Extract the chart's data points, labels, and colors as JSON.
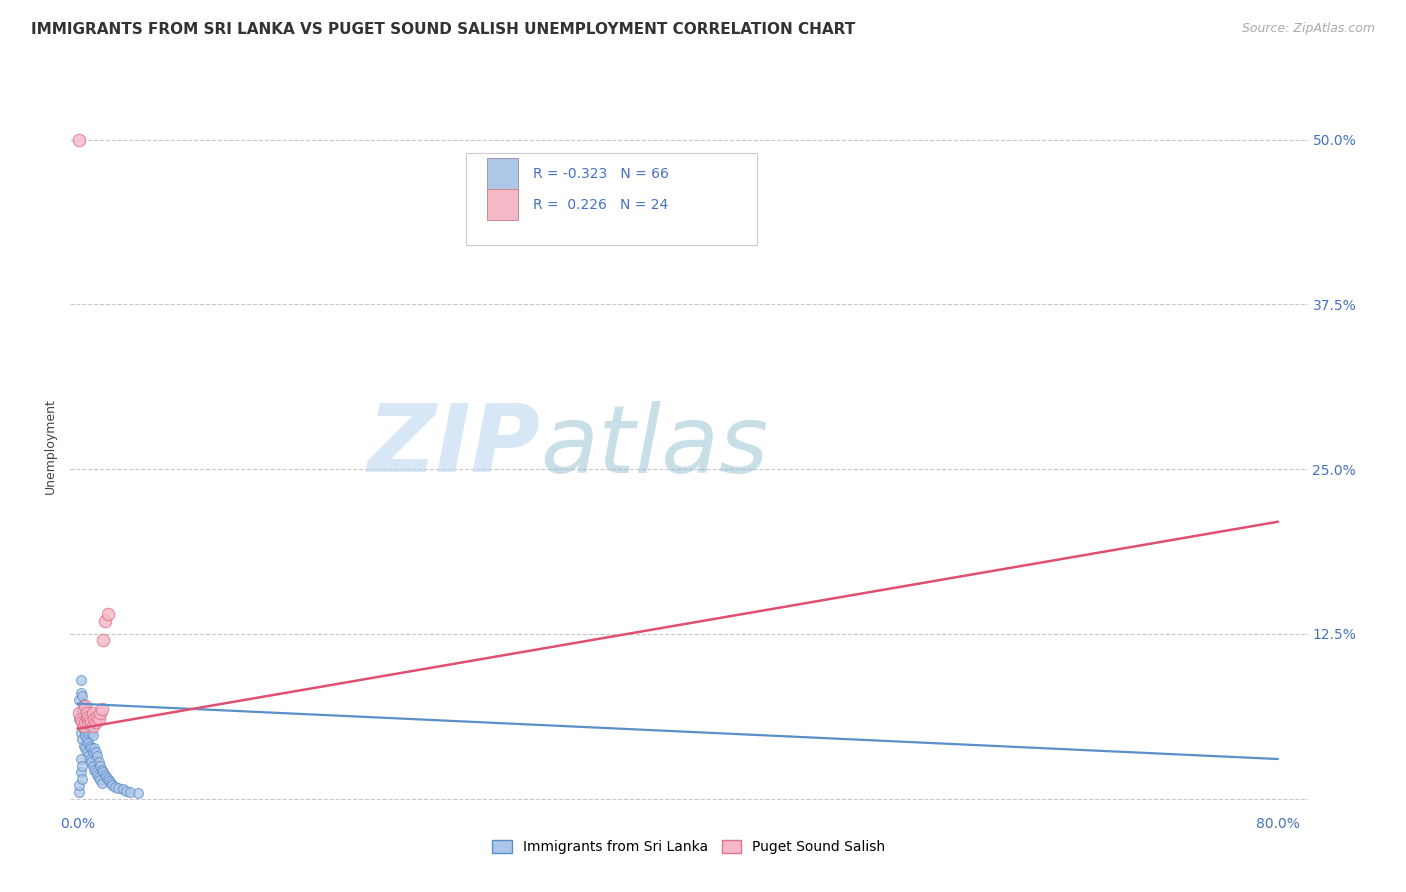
{
  "title": "IMMIGRANTS FROM SRI LANKA VS PUGET SOUND SALISH UNEMPLOYMENT CORRELATION CHART",
  "source": "Source: ZipAtlas.com",
  "ylabel": "Unemployment",
  "xlim": [
    -0.005,
    0.82
  ],
  "ylim": [
    -0.01,
    0.545
  ],
  "xtick_positions": [
    0.0,
    0.8
  ],
  "xticklabels": [
    "0.0%",
    "80.0%"
  ],
  "ytick_positions": [
    0.0,
    0.125,
    0.25,
    0.375,
    0.5
  ],
  "yticklabels_right": [
    "",
    "12.5%",
    "25.0%",
    "37.5%",
    "50.0%"
  ],
  "legend_R1": "-0.323",
  "legend_N1": "66",
  "legend_R2": "0.226",
  "legend_N2": "24",
  "color_blue_fill": "#aec6e8",
  "color_blue_edge": "#5b8fc9",
  "color_pink_fill": "#f5b8c8",
  "color_pink_edge": "#e0748a",
  "color_blue_line": "#5b8fc9",
  "color_pink_line": "#e05070",
  "color_text_blue": "#4472c4",
  "color_grid": "#c8c8c8",
  "watermark_zip": "ZIP",
  "watermark_atlas": "atlas",
  "background_color": "#ffffff",
  "blue_scatter_x": [
    0.001,
    0.001,
    0.002,
    0.002,
    0.002,
    0.002,
    0.003,
    0.003,
    0.003,
    0.003,
    0.004,
    0.004,
    0.004,
    0.004,
    0.005,
    0.005,
    0.005,
    0.005,
    0.006,
    0.006,
    0.006,
    0.006,
    0.007,
    0.007,
    0.007,
    0.007,
    0.008,
    0.008,
    0.008,
    0.009,
    0.009,
    0.009,
    0.01,
    0.01,
    0.01,
    0.011,
    0.011,
    0.012,
    0.012,
    0.013,
    0.013,
    0.014,
    0.014,
    0.015,
    0.015,
    0.016,
    0.016,
    0.017,
    0.018,
    0.019,
    0.02,
    0.021,
    0.022,
    0.023,
    0.025,
    0.027,
    0.03,
    0.032,
    0.035,
    0.04,
    0.001,
    0.001,
    0.002,
    0.002,
    0.003,
    0.003
  ],
  "blue_scatter_y": [
    0.06,
    0.075,
    0.05,
    0.065,
    0.08,
    0.09,
    0.045,
    0.055,
    0.068,
    0.078,
    0.04,
    0.052,
    0.063,
    0.072,
    0.038,
    0.048,
    0.058,
    0.07,
    0.035,
    0.045,
    0.055,
    0.065,
    0.032,
    0.042,
    0.05,
    0.062,
    0.03,
    0.04,
    0.055,
    0.028,
    0.038,
    0.05,
    0.025,
    0.035,
    0.048,
    0.022,
    0.038,
    0.02,
    0.035,
    0.018,
    0.032,
    0.016,
    0.028,
    0.014,
    0.025,
    0.012,
    0.022,
    0.02,
    0.018,
    0.016,
    0.015,
    0.013,
    0.012,
    0.01,
    0.009,
    0.008,
    0.007,
    0.006,
    0.005,
    0.004,
    0.005,
    0.01,
    0.02,
    0.03,
    0.015,
    0.025
  ],
  "pink_scatter_x": [
    0.001,
    0.002,
    0.003,
    0.004,
    0.005,
    0.005,
    0.006,
    0.006,
    0.007,
    0.007,
    0.008,
    0.009,
    0.01,
    0.01,
    0.011,
    0.012,
    0.013,
    0.014,
    0.015,
    0.016,
    0.017,
    0.018,
    0.02,
    0.001
  ],
  "pink_scatter_y": [
    0.065,
    0.06,
    0.058,
    0.055,
    0.058,
    0.07,
    0.06,
    0.065,
    0.058,
    0.062,
    0.06,
    0.058,
    0.055,
    0.065,
    0.06,
    0.058,
    0.062,
    0.06,
    0.065,
    0.068,
    0.12,
    0.135,
    0.14,
    0.5
  ],
  "blue_trend_x": [
    0.0,
    0.8
  ],
  "blue_trend_y": [
    0.072,
    0.03
  ],
  "pink_trend_x": [
    0.0,
    0.8
  ],
  "pink_trend_y": [
    0.053,
    0.21
  ],
  "title_fontsize": 11,
  "ylabel_fontsize": 9,
  "tick_fontsize": 10,
  "source_fontsize": 9,
  "legend_fontsize": 10
}
